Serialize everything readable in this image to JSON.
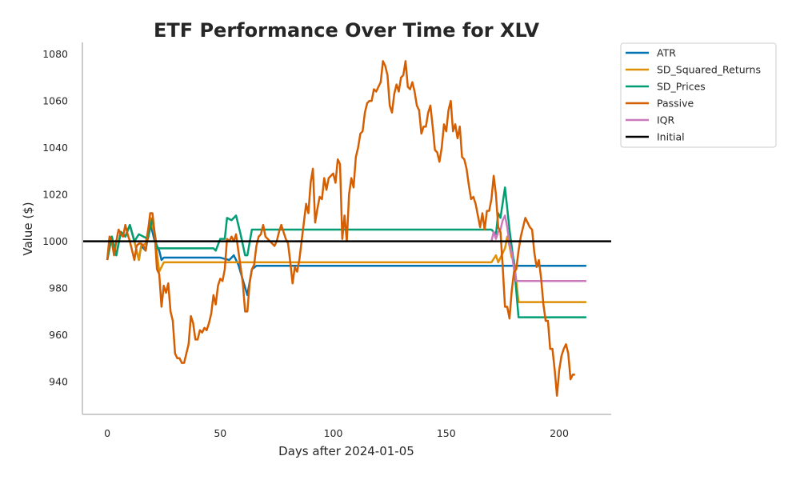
{
  "chart_data": {
    "type": "line",
    "title": "ETF Performance Over Time for XLV",
    "xlabel": "Days after 2024-01-05",
    "ylabel": "Value ($)",
    "xlim": [
      -11,
      223
    ],
    "ylim": [
      926,
      1085
    ],
    "xticks": [
      0,
      50,
      100,
      150,
      200
    ],
    "yticks": [
      940,
      960,
      980,
      1000,
      1020,
      1040,
      1060,
      1080
    ],
    "grid": false,
    "legend_position": "outside-top-right",
    "series": [
      {
        "name": "ATR",
        "color": "#0173b2",
        "points": [
          [
            0,
            992
          ],
          [
            2,
            1002
          ],
          [
            4,
            994
          ],
          [
            6,
            1004
          ],
          [
            8,
            1002
          ],
          [
            10,
            1007
          ],
          [
            12,
            1000
          ],
          [
            14,
            992
          ],
          [
            15,
            998
          ],
          [
            17,
            996
          ],
          [
            19,
            1008
          ],
          [
            21,
            1000
          ],
          [
            23,
            996
          ],
          [
            24,
            992
          ],
          [
            25,
            993
          ],
          [
            50,
            993
          ],
          [
            54,
            992
          ],
          [
            56,
            994
          ],
          [
            58,
            990
          ],
          [
            62,
            977
          ],
          [
            64,
            988
          ],
          [
            66,
            989.5
          ],
          [
            212,
            989.5
          ]
        ]
      },
      {
        "name": "SD_Squared_Returns",
        "color": "#de8f05",
        "points": [
          [
            0,
            992
          ],
          [
            2,
            1002
          ],
          [
            4,
            994
          ],
          [
            6,
            1004
          ],
          [
            8,
            1002
          ],
          [
            10,
            1007
          ],
          [
            12,
            1000
          ],
          [
            14,
            992
          ],
          [
            15,
            998
          ],
          [
            17,
            999
          ],
          [
            19,
            1010
          ],
          [
            21,
            1003
          ],
          [
            23,
            987
          ],
          [
            25,
            991
          ],
          [
            170,
            991
          ],
          [
            172,
            994
          ],
          [
            173,
            991
          ],
          [
            175,
            995
          ],
          [
            176,
            997
          ],
          [
            177,
            1002
          ],
          [
            178,
            998
          ],
          [
            179,
            993
          ],
          [
            180,
            992
          ],
          [
            182,
            974
          ],
          [
            212,
            974
          ]
        ]
      },
      {
        "name": "SD_Prices",
        "color": "#029e73",
        "points": [
          [
            0,
            992
          ],
          [
            2,
            1002
          ],
          [
            4,
            994
          ],
          [
            6,
            1004
          ],
          [
            8,
            1002
          ],
          [
            10,
            1007
          ],
          [
            12,
            1000
          ],
          [
            14,
            1003
          ],
          [
            16,
            1002
          ],
          [
            18,
            1001
          ],
          [
            20,
            1010
          ],
          [
            22,
            997
          ],
          [
            47,
            997
          ],
          [
            48,
            996
          ],
          [
            50,
            1001
          ],
          [
            52,
            1001
          ],
          [
            53,
            1010
          ],
          [
            55,
            1009
          ],
          [
            57,
            1011
          ],
          [
            59,
            1003
          ],
          [
            61,
            994
          ],
          [
            62,
            994
          ],
          [
            64,
            1005
          ],
          [
            170,
            1005
          ],
          [
            172,
            1003
          ],
          [
            173,
            1012
          ],
          [
            174,
            1010
          ],
          [
            176,
            1023
          ],
          [
            178,
            1005
          ],
          [
            180,
            990
          ],
          [
            182,
            967.5
          ],
          [
            212,
            967.5
          ]
        ]
      },
      {
        "name": "Passive",
        "color": "#d55e00",
        "points": [
          [
            0,
            992
          ],
          [
            1,
            1002
          ],
          [
            2,
            1000
          ],
          [
            3,
            994
          ],
          [
            4,
            1000
          ],
          [
            5,
            1005
          ],
          [
            6,
            1003
          ],
          [
            7,
            1002
          ],
          [
            8,
            1007
          ],
          [
            9,
            1003
          ],
          [
            10,
            1000
          ],
          [
            11,
            996
          ],
          [
            12,
            992
          ],
          [
            13,
            998
          ],
          [
            14,
            999
          ],
          [
            15,
            999
          ],
          [
            16,
            998
          ],
          [
            17,
            996
          ],
          [
            18,
            1004
          ],
          [
            19,
            1012
          ],
          [
            20,
            1012
          ],
          [
            21,
            1003
          ],
          [
            22,
            988
          ],
          [
            23,
            986
          ],
          [
            24,
            972
          ],
          [
            25,
            981
          ],
          [
            26,
            978
          ],
          [
            27,
            982
          ],
          [
            28,
            970
          ],
          [
            29,
            966
          ],
          [
            30,
            952
          ],
          [
            31,
            950
          ],
          [
            32,
            950
          ],
          [
            33,
            948
          ],
          [
            34,
            948
          ],
          [
            35,
            952
          ],
          [
            36,
            956
          ],
          [
            37,
            968
          ],
          [
            38,
            965
          ],
          [
            39,
            958
          ],
          [
            40,
            958
          ],
          [
            41,
            962
          ],
          [
            42,
            961
          ],
          [
            43,
            963
          ],
          [
            44,
            962
          ],
          [
            45,
            965
          ],
          [
            46,
            969
          ],
          [
            47,
            977
          ],
          [
            48,
            973
          ],
          [
            49,
            981
          ],
          [
            50,
            984
          ],
          [
            51,
            983
          ],
          [
            52,
            988
          ],
          [
            53,
            1001
          ],
          [
            54,
            1000
          ],
          [
            55,
            1002
          ],
          [
            56,
            1000
          ],
          [
            57,
            1003
          ],
          [
            58,
            996
          ],
          [
            59,
            989
          ],
          [
            60,
            982
          ],
          [
            61,
            970
          ],
          [
            62,
            970
          ],
          [
            63,
            982
          ],
          [
            64,
            988
          ],
          [
            65,
            990
          ],
          [
            66,
            998
          ],
          [
            67,
            1002
          ],
          [
            68,
            1003
          ],
          [
            69,
            1007
          ],
          [
            70,
            1002
          ],
          [
            71,
            1001
          ],
          [
            72,
            1000
          ],
          [
            73,
            999
          ],
          [
            74,
            998
          ],
          [
            75,
            1000
          ],
          [
            76,
            1004
          ],
          [
            77,
            1007
          ],
          [
            78,
            1004
          ],
          [
            79,
            1001
          ],
          [
            80,
            999
          ],
          [
            81,
            991
          ],
          [
            82,
            982
          ],
          [
            83,
            989
          ],
          [
            84,
            987
          ],
          [
            85,
            992
          ],
          [
            86,
            1000
          ],
          [
            87,
            1008
          ],
          [
            88,
            1016
          ],
          [
            89,
            1012
          ],
          [
            90,
            1025
          ],
          [
            91,
            1031
          ],
          [
            92,
            1008
          ],
          [
            93,
            1014
          ],
          [
            94,
            1019
          ],
          [
            95,
            1018
          ],
          [
            96,
            1027
          ],
          [
            97,
            1022
          ],
          [
            98,
            1027
          ],
          [
            99,
            1028
          ],
          [
            100,
            1029
          ],
          [
            101,
            1025
          ],
          [
            102,
            1035
          ],
          [
            103,
            1033
          ],
          [
            104,
            1001
          ],
          [
            105,
            1011
          ],
          [
            106,
            1000
          ],
          [
            107,
            1020
          ],
          [
            108,
            1027
          ],
          [
            109,
            1023
          ],
          [
            110,
            1036
          ],
          [
            111,
            1040
          ],
          [
            112,
            1046
          ],
          [
            113,
            1047
          ],
          [
            114,
            1055
          ],
          [
            115,
            1059
          ],
          [
            116,
            1060
          ],
          [
            117,
            1060
          ],
          [
            118,
            1065
          ],
          [
            119,
            1064
          ],
          [
            120,
            1066
          ],
          [
            121,
            1068
          ],
          [
            122,
            1077
          ],
          [
            123,
            1075
          ],
          [
            124,
            1071
          ],
          [
            125,
            1058
          ],
          [
            126,
            1055
          ],
          [
            127,
            1063
          ],
          [
            128,
            1067
          ],
          [
            129,
            1064
          ],
          [
            130,
            1070
          ],
          [
            131,
            1071
          ],
          [
            132,
            1077
          ],
          [
            133,
            1066
          ],
          [
            134,
            1065
          ],
          [
            135,
            1068
          ],
          [
            136,
            1064
          ],
          [
            137,
            1058
          ],
          [
            138,
            1056
          ],
          [
            139,
            1046
          ],
          [
            140,
            1049
          ],
          [
            141,
            1049
          ],
          [
            142,
            1055
          ],
          [
            143,
            1058
          ],
          [
            144,
            1049
          ],
          [
            145,
            1039
          ],
          [
            146,
            1038
          ],
          [
            147,
            1034
          ],
          [
            148,
            1040
          ],
          [
            149,
            1050
          ],
          [
            150,
            1047
          ],
          [
            151,
            1056
          ],
          [
            152,
            1060
          ],
          [
            153,
            1047
          ],
          [
            154,
            1050
          ],
          [
            155,
            1044
          ],
          [
            156,
            1049
          ],
          [
            157,
            1036
          ],
          [
            158,
            1035
          ],
          [
            159,
            1031
          ],
          [
            160,
            1024
          ],
          [
            161,
            1018
          ],
          [
            162,
            1019
          ],
          [
            163,
            1016
          ],
          [
            164,
            1011
          ],
          [
            165,
            1006
          ],
          [
            166,
            1012
          ],
          [
            167,
            1005
          ],
          [
            168,
            1013
          ],
          [
            169,
            1013
          ],
          [
            170,
            1018
          ],
          [
            171,
            1028
          ],
          [
            172,
            1020
          ],
          [
            173,
            1006
          ],
          [
            174,
            1004
          ],
          [
            175,
            989
          ],
          [
            176,
            972
          ],
          [
            177,
            972
          ],
          [
            178,
            967
          ],
          [
            179,
            979
          ],
          [
            180,
            987
          ],
          [
            181,
            988
          ],
          [
            182,
            996
          ],
          [
            183,
            1002
          ],
          [
            184,
            1006
          ],
          [
            185,
            1010
          ],
          [
            186,
            1008
          ],
          [
            187,
            1006
          ],
          [
            188,
            1005
          ],
          [
            189,
            995
          ],
          [
            190,
            989
          ],
          [
            191,
            992
          ],
          [
            192,
            984
          ],
          [
            193,
            973
          ],
          [
            194,
            966
          ],
          [
            195,
            966
          ],
          [
            196,
            954
          ],
          [
            197,
            954
          ],
          [
            198,
            945
          ],
          [
            199,
            934
          ],
          [
            200,
            945
          ],
          [
            201,
            951
          ],
          [
            202,
            954
          ],
          [
            203,
            956
          ],
          [
            204,
            952
          ],
          [
            205,
            941
          ],
          [
            206,
            943
          ],
          [
            207,
            943
          ]
        ]
      },
      {
        "name": "IQR",
        "color": "#cc78bc",
        "points": [
          [
            170,
            1000
          ],
          [
            171,
            1004
          ],
          [
            172,
            1001
          ],
          [
            173,
            1004
          ],
          [
            174,
            1005
          ],
          [
            175,
            1009
          ],
          [
            176,
            1011
          ],
          [
            177,
            1006
          ],
          [
            178,
            999
          ],
          [
            179,
            995
          ],
          [
            180,
            988
          ],
          [
            181,
            983
          ],
          [
            212,
            983
          ]
        ]
      },
      {
        "name": "Initial",
        "color": "#000000",
        "points": [
          [
            -11,
            1000
          ],
          [
            223,
            1000
          ]
        ]
      }
    ]
  }
}
